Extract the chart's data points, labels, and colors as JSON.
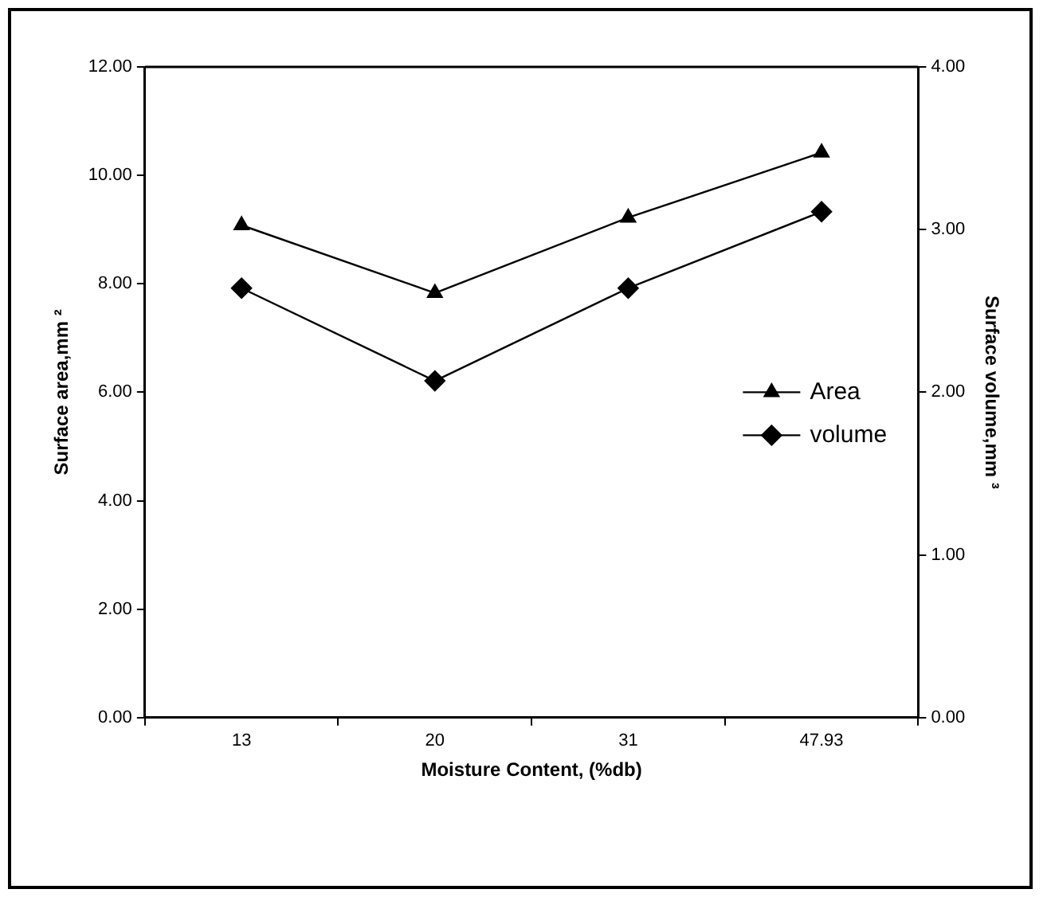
{
  "chart_data": {
    "type": "line",
    "xlabel": "Moisture Content, (%db)",
    "ylabel": "Surface area,mm ²",
    "y2label": "Surface volume,mm ³",
    "categories": [
      "13",
      "20",
      "31",
      "47.93"
    ],
    "series": [
      {
        "name": "Area",
        "color": "#000000",
        "marker": "triangle",
        "values": [
          9.08,
          7.83,
          9.22,
          10.42
        ]
      },
      {
        "name": "volume",
        "color": "#000000",
        "marker": "diamond",
        "axis": "y2",
        "values": [
          2.64,
          2.07,
          2.64,
          3.11
        ]
      }
    ],
    "ylim": [
      0,
      12
    ],
    "yticks": [
      {
        "value": 0,
        "label": "0.00"
      },
      {
        "value": 2,
        "label": "2.00"
      },
      {
        "value": 4,
        "label": "4.00"
      },
      {
        "value": 6,
        "label": "6.00"
      },
      {
        "value": 8,
        "label": "8.00"
      },
      {
        "value": 10,
        "label": "10.00"
      },
      {
        "value": 12,
        "label": "12.00"
      }
    ],
    "y2lim": [
      0,
      4
    ],
    "y2ticks": [
      {
        "value": 0,
        "label": "0.00"
      },
      {
        "value": 1,
        "label": "1.00"
      },
      {
        "value": 2,
        "label": "2.00"
      },
      {
        "value": 3,
        "label": "3.00"
      },
      {
        "value": 4,
        "label": "4.00"
      }
    ],
    "grid": false,
    "legend": "right",
    "line_style": "solid"
  }
}
